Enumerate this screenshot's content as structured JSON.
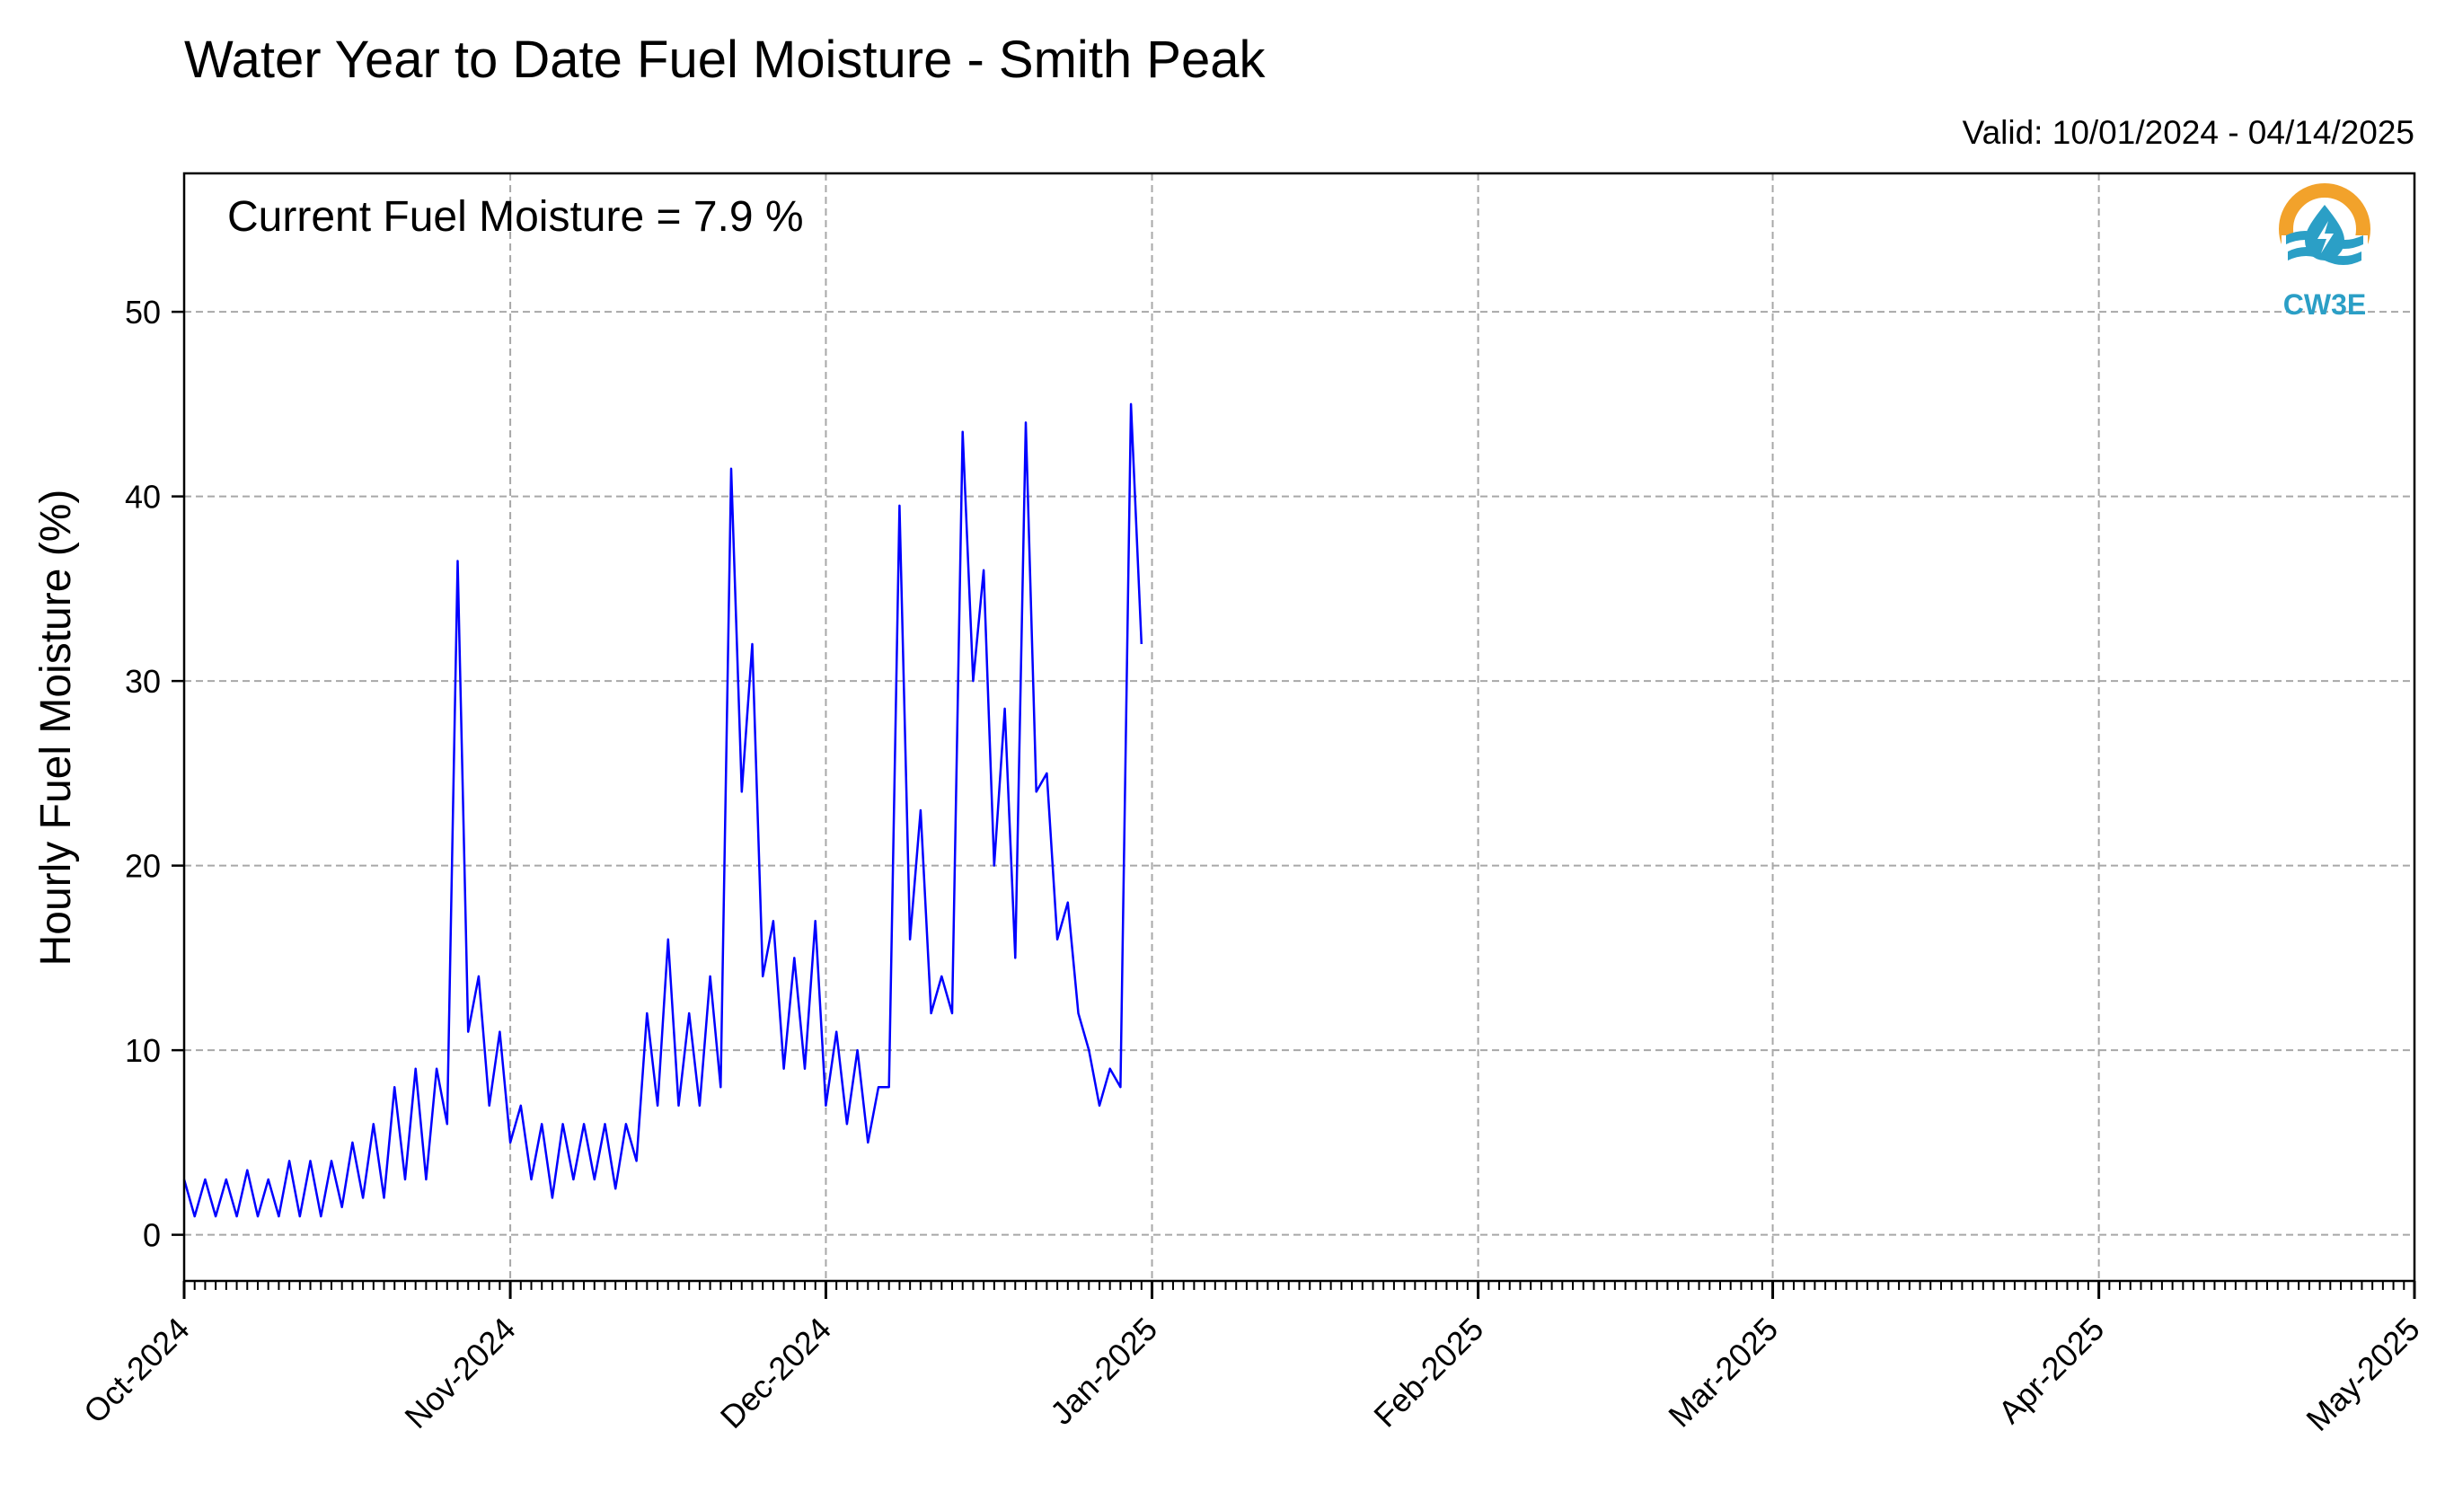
{
  "chart_data": {
    "type": "line",
    "title": "Water Year to Date Fuel Moisture - Smith Peak",
    "subtitle": "Valid: 10/01/2024 - 04/14/2025",
    "annotation": "Current Fuel Moisture = 7.9 %",
    "xlabel": "",
    "ylabel": "Hourly Fuel Moisture (%)",
    "xlim": [
      "2024-10-01",
      "2025-05-01"
    ],
    "ylim": [
      -2.5,
      57.5
    ],
    "yticks": [
      0,
      10,
      20,
      30,
      40,
      50
    ],
    "xticks": [
      {
        "date": "2024-10-01",
        "label": "Oct-2024"
      },
      {
        "date": "2024-11-01",
        "label": "Nov-2024"
      },
      {
        "date": "2024-12-01",
        "label": "Dec-2024"
      },
      {
        "date": "2025-01-01",
        "label": "Jan-2025"
      },
      {
        "date": "2025-02-01",
        "label": "Feb-2025"
      },
      {
        "date": "2025-03-01",
        "label": "Mar-2025"
      },
      {
        "date": "2025-04-01",
        "label": "Apr-2025"
      },
      {
        "date": "2025-05-01",
        "label": "May-2025"
      }
    ],
    "grid": true,
    "line_color": "#0000ff",
    "series": [
      {
        "points": [
          [
            "2024-10-01",
            3
          ],
          [
            "2024-10-02",
            1
          ],
          [
            "2024-10-03",
            3
          ],
          [
            "2024-10-04",
            1
          ],
          [
            "2024-10-05",
            3
          ],
          [
            "2024-10-06",
            1
          ],
          [
            "2024-10-07",
            3.5
          ],
          [
            "2024-10-08",
            1
          ],
          [
            "2024-10-09",
            3
          ],
          [
            "2024-10-10",
            1
          ],
          [
            "2024-10-11",
            4
          ],
          [
            "2024-10-12",
            1
          ],
          [
            "2024-10-13",
            4
          ],
          [
            "2024-10-14",
            1
          ],
          [
            "2024-10-15",
            4
          ],
          [
            "2024-10-16",
            1.5
          ],
          [
            "2024-10-17",
            5
          ],
          [
            "2024-10-18",
            2
          ],
          [
            "2024-10-19",
            6
          ],
          [
            "2024-10-20",
            2
          ],
          [
            "2024-10-21",
            8
          ],
          [
            "2024-10-22",
            3
          ],
          [
            "2024-10-23",
            9
          ],
          [
            "2024-10-24",
            3
          ],
          [
            "2024-10-25",
            9
          ],
          [
            "2024-10-26",
            6
          ],
          [
            "2024-10-27",
            36.5
          ],
          [
            "2024-10-28",
            11
          ],
          [
            "2024-10-29",
            14
          ],
          [
            "2024-10-30",
            7
          ],
          [
            "2024-10-31",
            11
          ],
          [
            "2024-11-01",
            5
          ],
          [
            "2024-11-02",
            7
          ],
          [
            "2024-11-03",
            3
          ],
          [
            "2024-11-04",
            6
          ],
          [
            "2024-11-05",
            2
          ],
          [
            "2024-11-06",
            6
          ],
          [
            "2024-11-07",
            3
          ],
          [
            "2024-11-08",
            6
          ],
          [
            "2024-11-09",
            3
          ],
          [
            "2024-11-10",
            6
          ],
          [
            "2024-11-11",
            2.5
          ],
          [
            "2024-11-12",
            6
          ],
          [
            "2024-11-13",
            4
          ],
          [
            "2024-11-14",
            12
          ],
          [
            "2024-11-15",
            7
          ],
          [
            "2024-11-16",
            16
          ],
          [
            "2024-11-17",
            7
          ],
          [
            "2024-11-18",
            12
          ],
          [
            "2024-11-19",
            7
          ],
          [
            "2024-11-20",
            14
          ],
          [
            "2024-11-21",
            8
          ],
          [
            "2024-11-22",
            41.5
          ],
          [
            "2024-11-23",
            24
          ],
          [
            "2024-11-24",
            32
          ],
          [
            "2024-11-25",
            14
          ],
          [
            "2024-11-26",
            17
          ],
          [
            "2024-11-27",
            9
          ],
          [
            "2024-11-28",
            15
          ],
          [
            "2024-11-29",
            9
          ],
          [
            "2024-11-30",
            17
          ],
          [
            "2024-12-01",
            7
          ],
          [
            "2024-12-02",
            11
          ],
          [
            "2024-12-03",
            6
          ],
          [
            "2024-12-04",
            10
          ],
          [
            "2024-12-05",
            5
          ],
          [
            "2024-12-06",
            8
          ],
          [
            "2024-12-07",
            8
          ],
          [
            "2024-12-08",
            39.5
          ],
          [
            "2024-12-09",
            16
          ],
          [
            "2024-12-10",
            23
          ],
          [
            "2024-12-11",
            12
          ],
          [
            "2024-12-12",
            14
          ],
          [
            "2024-12-13",
            12
          ],
          [
            "2024-12-14",
            43.5
          ],
          [
            "2024-12-15",
            30
          ],
          [
            "2024-12-16",
            36
          ],
          [
            "2024-12-17",
            20
          ],
          [
            "2024-12-18",
            28.5
          ],
          [
            "2024-12-19",
            15
          ],
          [
            "2024-12-20",
            44
          ],
          [
            "2024-12-21",
            24
          ],
          [
            "2024-12-22",
            25
          ],
          [
            "2024-12-23",
            16
          ],
          [
            "2024-12-24",
            18
          ],
          [
            "2024-12-25",
            12
          ],
          [
            "2024-12-26",
            10
          ],
          [
            "2024-12-27",
            7
          ],
          [
            "2024-12-28",
            9
          ],
          [
            "2024-12-29",
            8
          ],
          [
            "2024-12-30",
            45
          ],
          [
            "2024-12-31",
            32
          ]
        ]
      }
    ]
  }
}
